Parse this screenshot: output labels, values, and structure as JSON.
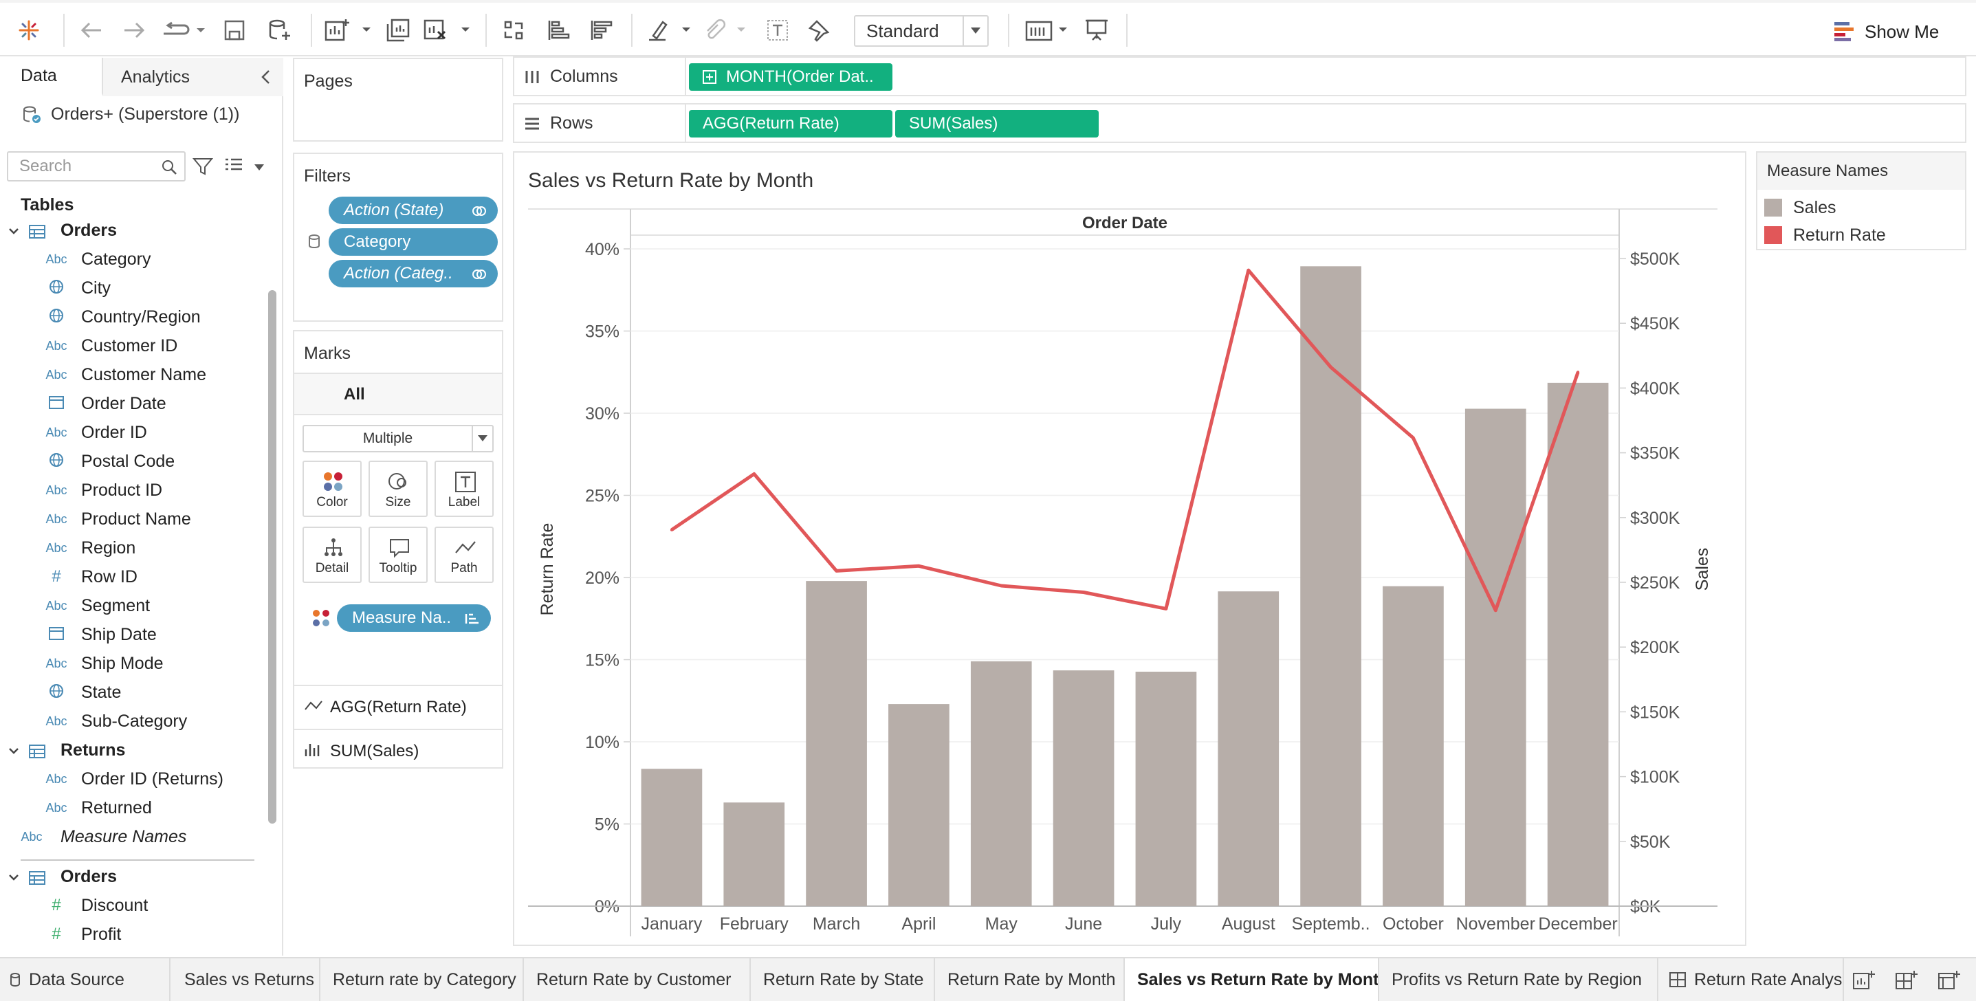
{
  "toolbar": {
    "view_mode": "Standard",
    "show_me": "Show Me"
  },
  "data_pane": {
    "tab_data": "Data",
    "tab_analytics": "Analytics",
    "datasource": "Orders+ (Superstore (1))",
    "search_placeholder": "Search",
    "tables_heading": "Tables",
    "tables": [
      {
        "name": "Orders",
        "fields": [
          {
            "type": "Abc",
            "name": "Category"
          },
          {
            "type": "geo",
            "name": "City"
          },
          {
            "type": "geo",
            "name": "Country/Region"
          },
          {
            "type": "Abc",
            "name": "Customer ID"
          },
          {
            "type": "Abc",
            "name": "Customer Name"
          },
          {
            "type": "date",
            "name": "Order Date"
          },
          {
            "type": "Abc",
            "name": "Order ID"
          },
          {
            "type": "geo",
            "name": "Postal Code"
          },
          {
            "type": "Abc",
            "name": "Product ID"
          },
          {
            "type": "Abc",
            "name": "Product Name"
          },
          {
            "type": "Abc",
            "name": "Region"
          },
          {
            "type": "num",
            "name": "Row ID"
          },
          {
            "type": "Abc",
            "name": "Segment"
          },
          {
            "type": "date",
            "name": "Ship Date"
          },
          {
            "type": "Abc",
            "name": "Ship Mode"
          },
          {
            "type": "geo",
            "name": "State"
          },
          {
            "type": "Abc",
            "name": "Sub-Category"
          }
        ]
      },
      {
        "name": "Returns",
        "fields": [
          {
            "type": "Abc",
            "name": "Order ID (Returns)"
          },
          {
            "type": "Abc",
            "name": "Returned"
          }
        ]
      }
    ],
    "measure_names": "Measure Names",
    "measures_table": {
      "name": "Orders",
      "fields": [
        {
          "type": "#",
          "name": "Discount"
        },
        {
          "type": "#",
          "name": "Profit"
        }
      ]
    }
  },
  "pages_card": {
    "title": "Pages"
  },
  "filters_card": {
    "title": "Filters",
    "pills": [
      "Action (State)",
      "Category",
      "Action (Categ.."
    ]
  },
  "marks_card": {
    "title": "Marks",
    "all_label": "All",
    "mark_type": "Multiple",
    "buttons": [
      "Color",
      "Size",
      "Label",
      "Detail",
      "Tooltip",
      "Path"
    ],
    "measure_pill": "Measure Na..",
    "rows": [
      "AGG(Return Rate)",
      "SUM(Sales)"
    ]
  },
  "shelves": {
    "columns_label": "Columns",
    "rows_label": "Rows",
    "columns_pills": [
      "MONTH(Order Dat.."
    ],
    "rows_pills": [
      "AGG(Return Rate)",
      "SUM(Sales)"
    ]
  },
  "viz": {
    "title": "Sales vs Return Rate by Month"
  },
  "legend": {
    "title": "Measure Names",
    "items": [
      {
        "name": "Sales",
        "color": "#b7aea9"
      },
      {
        "name": "Return Rate",
        "color": "#e15759"
      }
    ]
  },
  "chart_data": {
    "type": "bar",
    "title": "Sales vs Return Rate by Month",
    "header": "Order Date",
    "categories": [
      "January",
      "February",
      "March",
      "April",
      "May",
      "June",
      "July",
      "August",
      "Septemb..",
      "October",
      "November",
      "December"
    ],
    "series": [
      {
        "name": "Sales",
        "type": "bar",
        "axis": "right",
        "color": "#b7aea9",
        "values": [
          106000,
          80000,
          251000,
          156000,
          189000,
          182000,
          181000,
          243000,
          494000,
          247000,
          384000,
          404000
        ]
      },
      {
        "name": "Return Rate",
        "type": "line",
        "axis": "left",
        "color": "#e15759",
        "values": [
          22.9,
          26.3,
          20.4,
          20.7,
          19.5,
          19.1,
          18.1,
          38.7,
          32.8,
          28.5,
          18.0,
          32.5
        ]
      }
    ],
    "ylabel_left": "Return Rate",
    "ylabel_right": "Sales",
    "yticks_left": [
      "0%",
      "5%",
      "10%",
      "15%",
      "20%",
      "25%",
      "30%",
      "35%",
      "40%"
    ],
    "yticks_right": [
      "$0K",
      "$50K",
      "$100K",
      "$150K",
      "$200K",
      "$250K",
      "$300K",
      "$350K",
      "$400K",
      "$450K",
      "$500K"
    ],
    "ylim_left": [
      0,
      40
    ],
    "ylim_right": [
      0,
      500000
    ],
    "grid": true
  },
  "bottom_tabs": [
    {
      "label": "Data Source"
    },
    {
      "label": "Sales vs Returns"
    },
    {
      "label": "Return rate by Category"
    },
    {
      "label": "Return Rate by Customer"
    },
    {
      "label": "Return Rate by State"
    },
    {
      "label": "Return Rate by Month"
    },
    {
      "label": "Sales vs Return Rate by Month"
    },
    {
      "label": "Profits vs Return Rate by Region"
    },
    {
      "label": "Return Rate Analysis"
    }
  ]
}
